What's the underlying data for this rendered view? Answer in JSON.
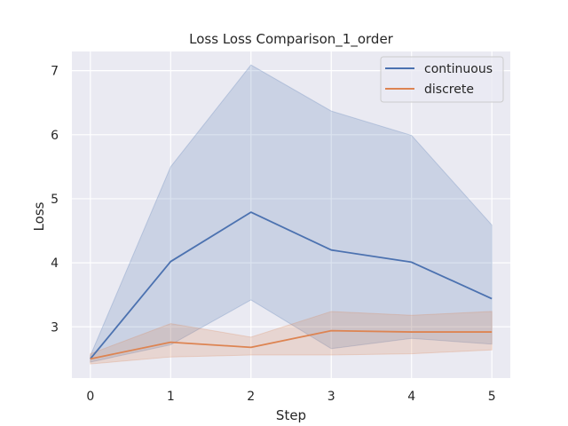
{
  "chart_data": {
    "type": "line",
    "title": "Loss Loss Comparison_1_order",
    "xlabel": "Step",
    "ylabel": "Loss",
    "x": [
      0,
      1,
      2,
      3,
      4,
      5
    ],
    "xlim": [
      -0.23,
      5.23
    ],
    "ylim": [
      2.2,
      7.3
    ],
    "xticks": [
      "0",
      "1",
      "2",
      "3",
      "4",
      "5"
    ],
    "yticks": [
      3,
      4,
      5,
      6,
      7
    ],
    "grid": true,
    "legend_position": "top-right",
    "background": "#eaeaf2",
    "series": [
      {
        "name": "continuous",
        "color": "#4c72b0",
        "values": [
          2.5,
          4.02,
          4.79,
          4.2,
          4.01,
          3.44
        ],
        "lower": [
          2.45,
          2.72,
          3.42,
          2.66,
          2.82,
          2.73
        ],
        "upper": [
          2.55,
          5.5,
          7.09,
          6.37,
          5.99,
          4.59
        ]
      },
      {
        "name": "discrete",
        "color": "#dd8452",
        "values": [
          2.5,
          2.76,
          2.68,
          2.94,
          2.92,
          2.92
        ],
        "lower": [
          2.42,
          2.53,
          2.56,
          2.56,
          2.58,
          2.64
        ],
        "upper": [
          2.58,
          3.05,
          2.84,
          3.24,
          3.18,
          3.24
        ]
      }
    ]
  }
}
